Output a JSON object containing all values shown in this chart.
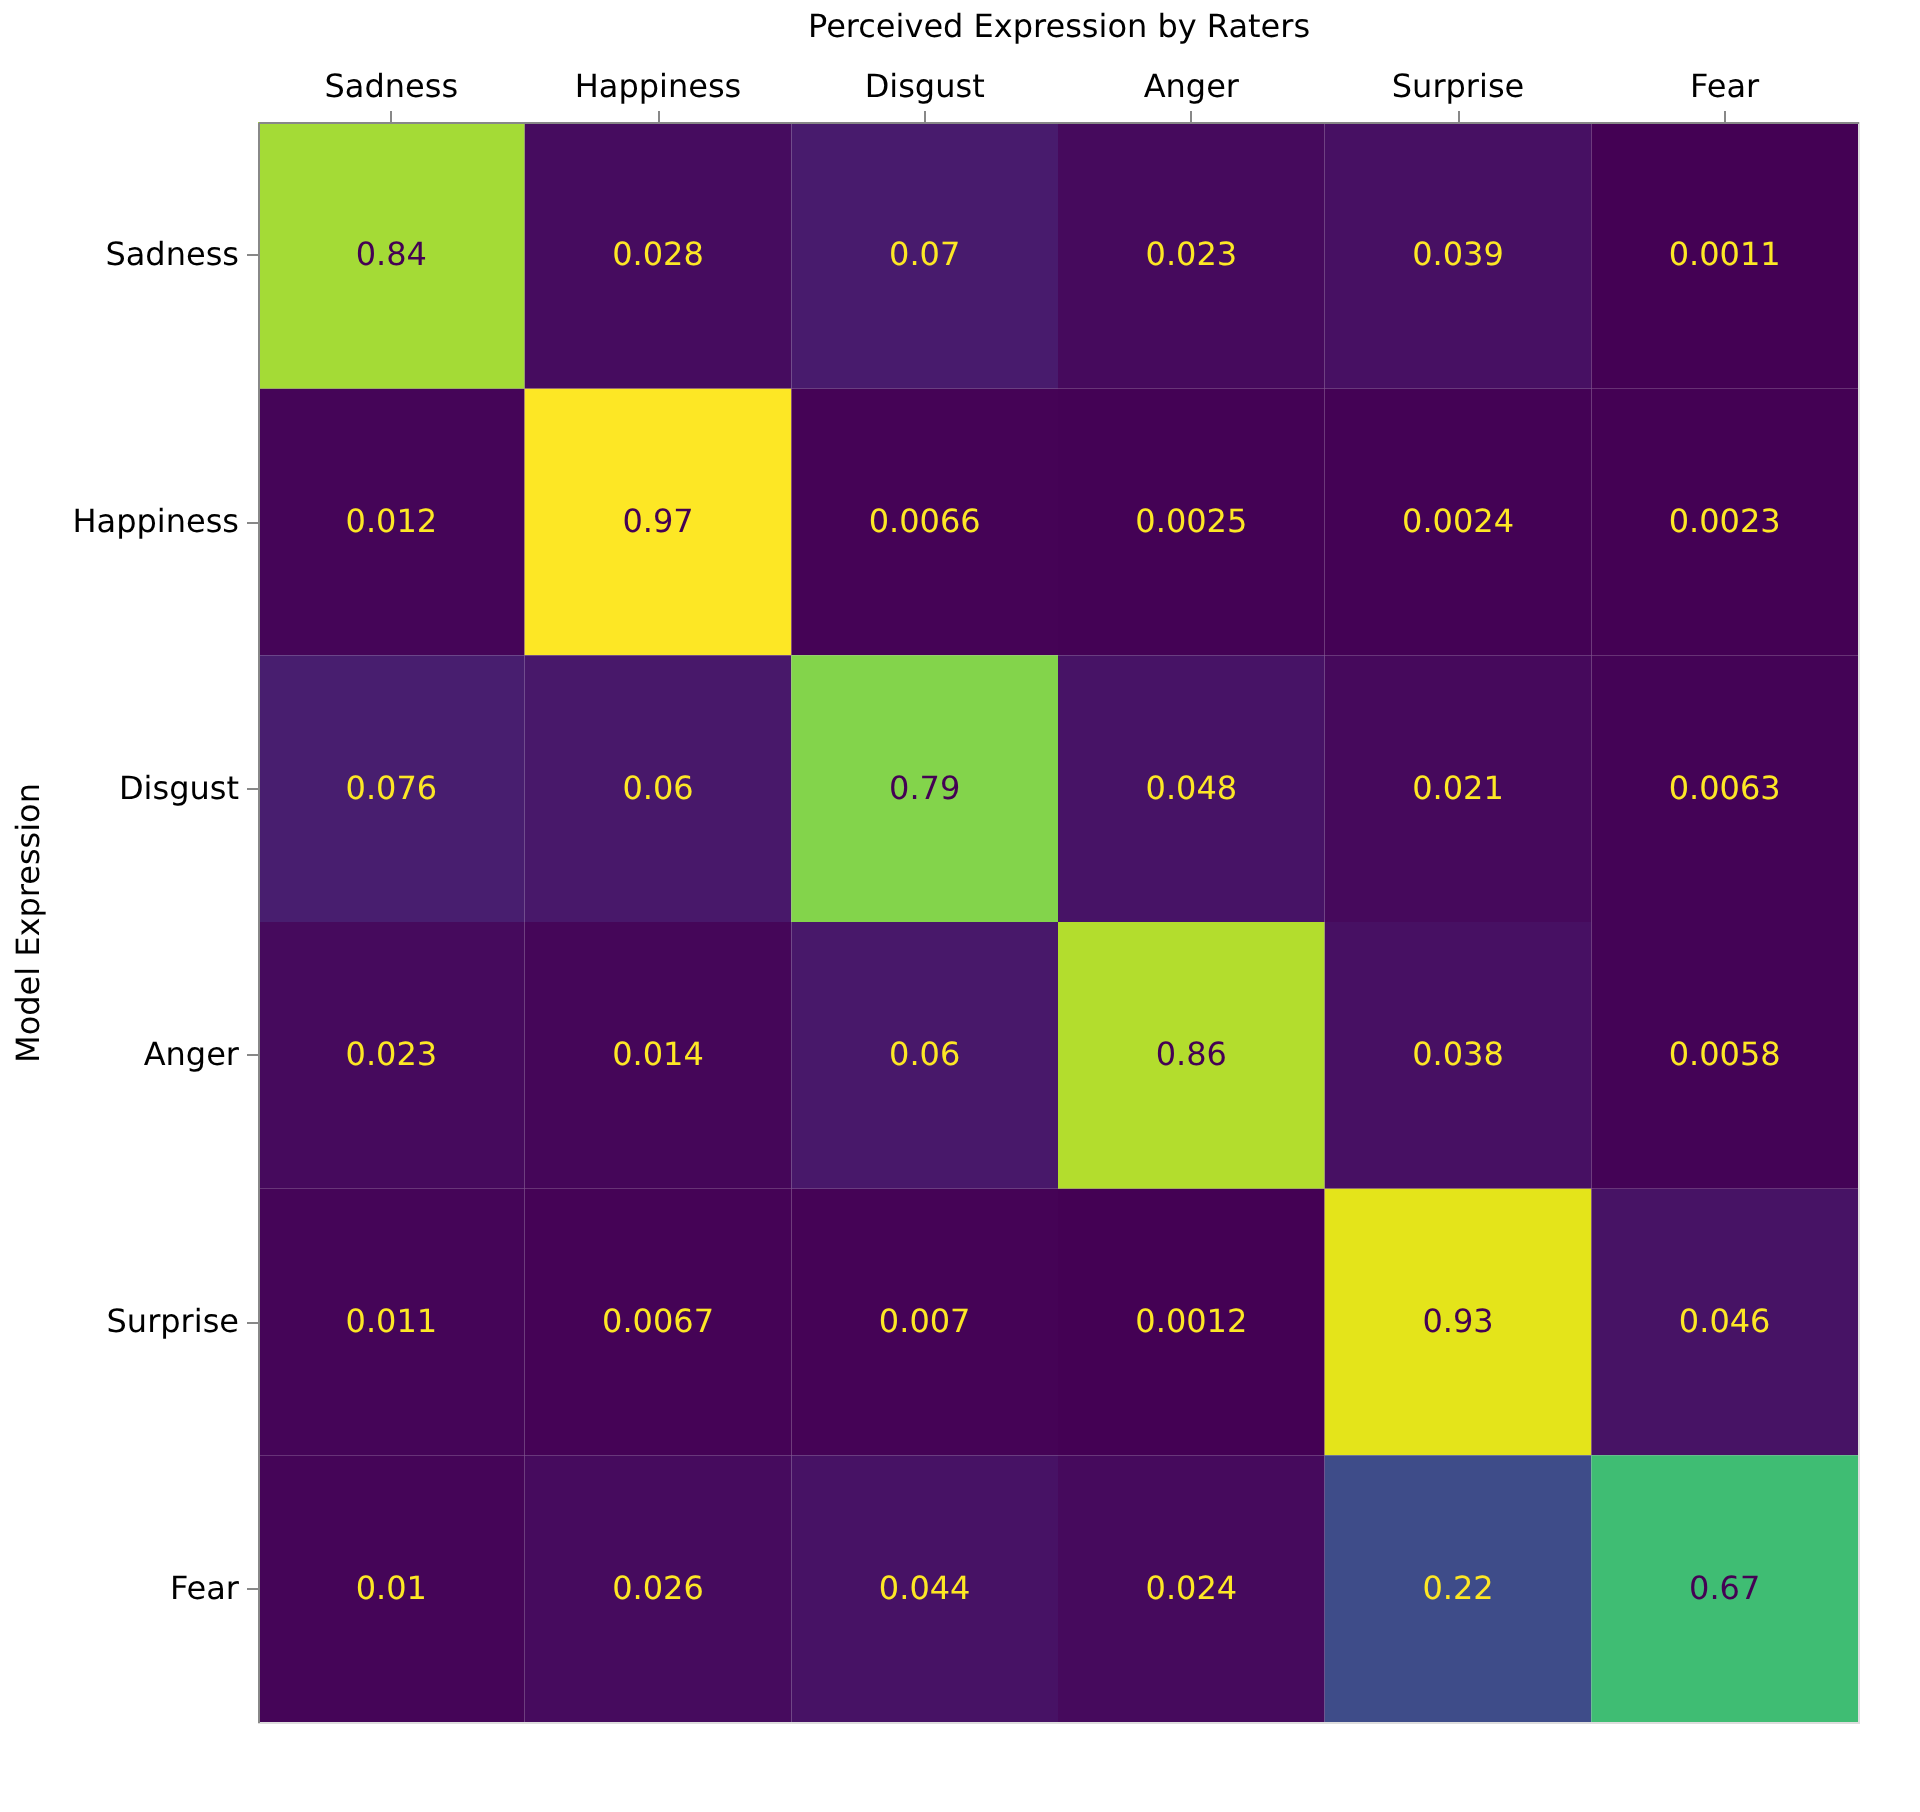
{
  "chart_data": {
    "type": "heatmap",
    "xlabel": "Perceived Expression by Raters",
    "ylabel": "Model Expression",
    "categories": [
      "Sadness",
      "Happiness",
      "Disgust",
      "Anger",
      "Surprise",
      "Fear"
    ],
    "y_categories": [
      "Sadness",
      "Happiness",
      "Disgust",
      "Anger",
      "Surprise",
      "Fear"
    ],
    "cells": [
      [
        0.84,
        0.028,
        0.07,
        0.023,
        0.039,
        0.0011
      ],
      [
        0.012,
        0.97,
        0.0066,
        0.0025,
        0.0024,
        0.0023
      ],
      [
        0.076,
        0.06,
        0.79,
        0.048,
        0.021,
        0.0063
      ],
      [
        0.023,
        0.014,
        0.06,
        0.86,
        0.038,
        0.0058
      ],
      [
        0.011,
        0.0067,
        0.007,
        0.0012,
        0.93,
        0.046
      ],
      [
        0.01,
        0.026,
        0.044,
        0.024,
        0.22,
        0.67
      ]
    ],
    "data_labels": true
  }
}
